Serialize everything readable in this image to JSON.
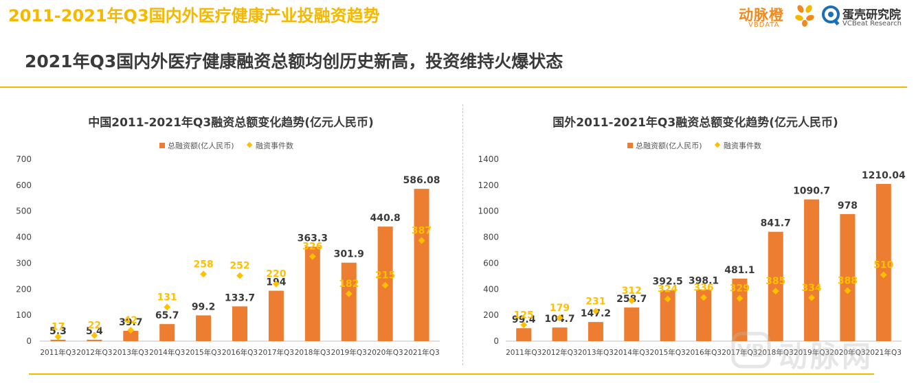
{
  "header": {
    "title": "2011-2021年Q3国内外医疗健康产业投融资趋势",
    "subtitle": "2021年Q3国内外医疗健康融资总额均创历史新高，投资维持火爆状态"
  },
  "logos": {
    "vbdata_cn": "动脉橙",
    "vbdata_en": "VBDATA",
    "vcbeat_cn": "蛋壳研究院",
    "vcbeat_en": "VCBeat Research",
    "watermark": "动脉网"
  },
  "colors": {
    "accent": "#f5b800",
    "bar": "#ed7d31",
    "marker": "#ffc000",
    "text": "#3a3a3a"
  },
  "chart_data": [
    {
      "type": "bar",
      "title": "中国2011-2021年Q3融资总额变化趋势(亿元人民币)",
      "legend": [
        "总融资额(亿人民币)",
        "融资事件数"
      ],
      "categories": [
        "2011年Q3",
        "2012年Q3",
        "2013年Q3",
        "2014年Q3",
        "2015年Q3",
        "2016年Q3",
        "2017年Q3",
        "2018年Q3",
        "2019年Q3",
        "2020年Q3",
        "2021年Q3"
      ],
      "series": [
        {
          "name": "总融资额(亿人民币)",
          "kind": "bar",
          "values": [
            5.3,
            5.4,
            39.7,
            65.7,
            99.2,
            133.7,
            194,
            363.3,
            301.9,
            440.8,
            586.08
          ]
        },
        {
          "name": "融资事件数",
          "kind": "marker",
          "values": [
            17,
            22,
            42,
            131,
            258,
            252,
            220,
            326,
            182,
            215,
            387
          ]
        }
      ],
      "ylim": [
        0,
        700
      ],
      "yticks": [
        0,
        100,
        200,
        300,
        400,
        500,
        600,
        700
      ]
    },
    {
      "type": "bar",
      "title": "国外2011-2021年Q3融资总额变化趋势(亿元人民币)",
      "legend": [
        "总融资额(亿人民币)",
        "融资事件数"
      ],
      "categories": [
        "2011年Q3",
        "2012年Q3",
        "2013年Q3",
        "2014年Q3",
        "2015年Q3",
        "2016年Q3",
        "2017年Q3",
        "2018年Q3",
        "2019年Q3",
        "2020年Q3",
        "2021年Q3"
      ],
      "series": [
        {
          "name": "总融资额(亿人民币)",
          "kind": "bar",
          "values": [
            99.4,
            104.7,
            147.2,
            258.7,
            392.5,
            398.1,
            481.1,
            841.7,
            1090.7,
            978,
            1210.04
          ]
        },
        {
          "name": "融资事件数",
          "kind": "marker",
          "values": [
            125,
            179,
            231,
            312,
            324,
            336,
            329,
            385,
            334,
            388,
            510
          ]
        }
      ],
      "ylim": [
        0,
        1400
      ],
      "yticks": [
        0,
        200,
        400,
        600,
        800,
        1000,
        1200,
        1400
      ]
    }
  ]
}
